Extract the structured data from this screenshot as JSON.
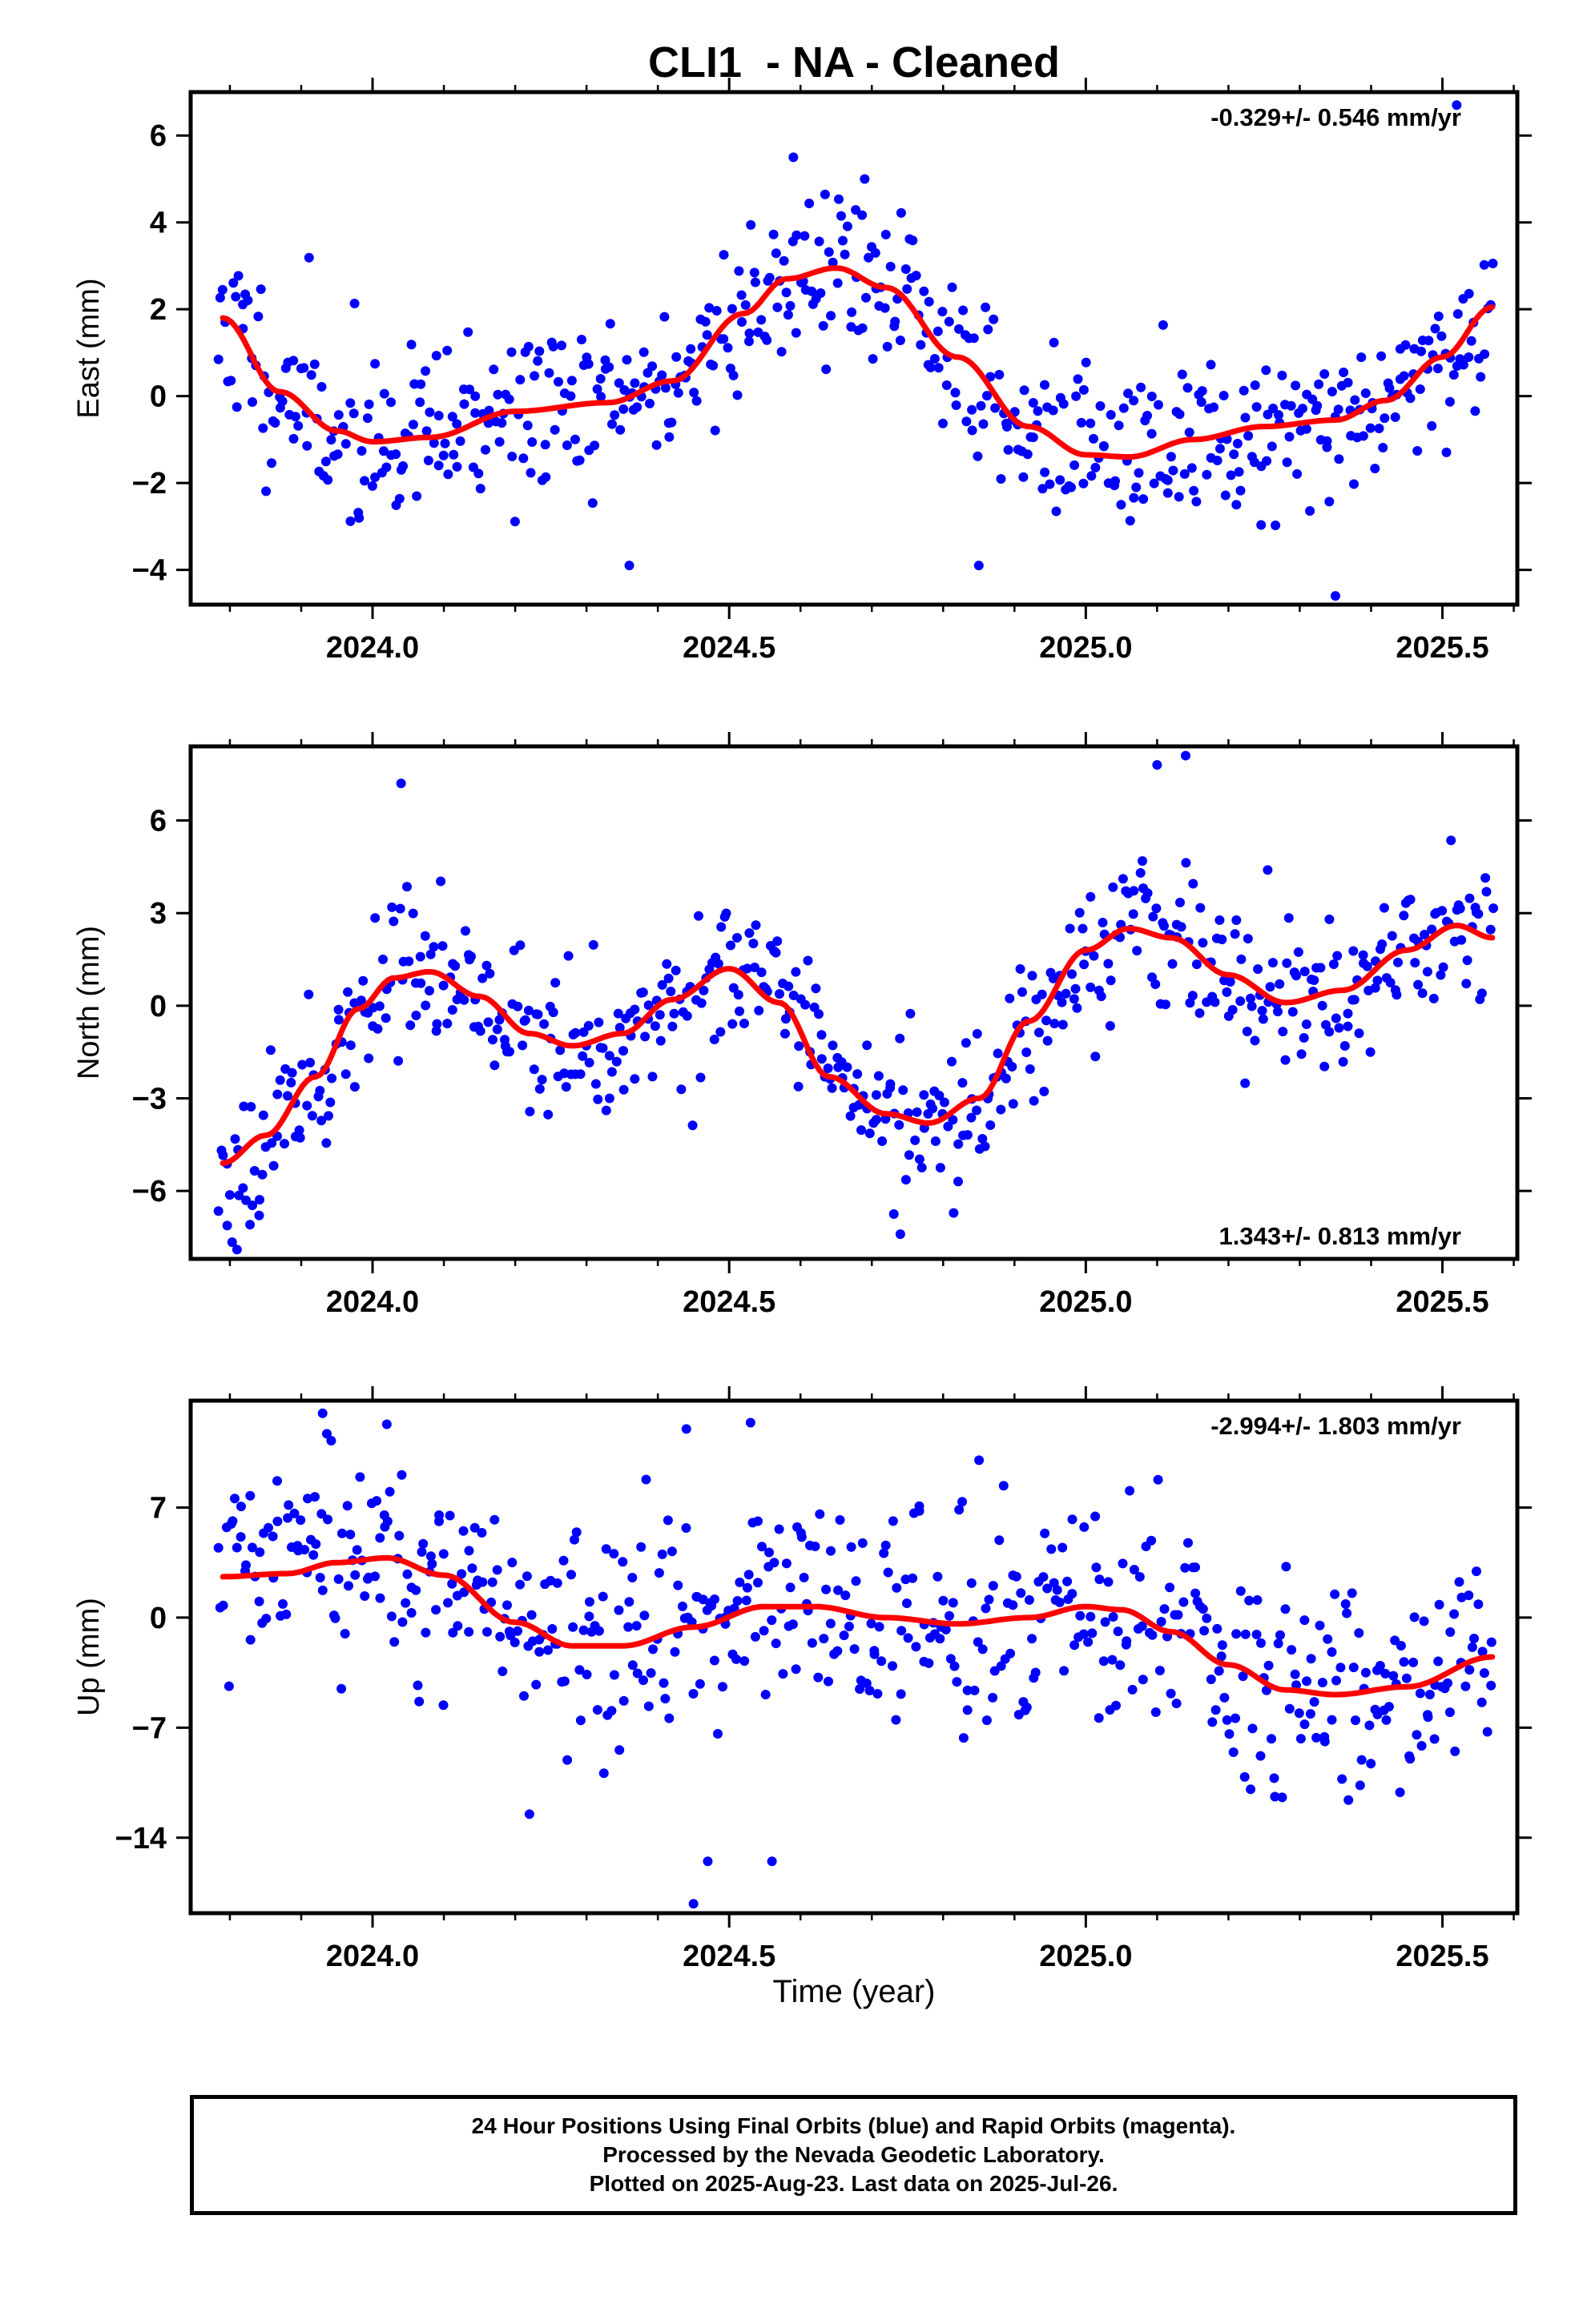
{
  "title": "CLI1  - NA - Cleaned",
  "xlabel": "Time (year)",
  "footer": {
    "line1": "24 Hour Positions Using Final Orbits (blue) and Rapid Orbits (magenta).",
    "line2": "Processed by the Nevada Geodetic Laboratory.",
    "line3": "Plotted on 2025-Aug-23. Last data on 2025-Jul-26."
  },
  "colors": {
    "points": "#0000ff",
    "fit": "#ff0000",
    "frame": "#000000"
  },
  "chart_data": [
    {
      "type": "scatter",
      "ylabel": "East (mm)",
      "rate": "-0.329+/- 0.546 mm/yr",
      "rate_position": "top-right",
      "xlim": [
        2023.745,
        2025.605
      ],
      "ylim": [
        -4.8,
        7.0
      ],
      "xticks": [
        2024.0,
        2024.5,
        2025.0,
        2025.5
      ],
      "xtick_labels": [
        "2024.0",
        "2024.5",
        "2025.0",
        "2025.5"
      ],
      "yticks": [
        -4,
        -2,
        0,
        2,
        4,
        6
      ],
      "ytick_labels": [
        "−4",
        "−2",
        "0",
        "2",
        "4",
        "6"
      ],
      "seed": 11,
      "noise": 1.0,
      "outliers": [
        {
          "x": 2024.36,
          "y": -3.9
        },
        {
          "x": 2024.85,
          "y": -3.9
        },
        {
          "x": 2025.35,
          "y": -4.6
        },
        {
          "x": 2024.59,
          "y": 5.5
        },
        {
          "x": 2025.52,
          "y": 6.7
        },
        {
          "x": 2024.69,
          "y": 5.0
        }
      ],
      "fit": {
        "x": [
          2023.79,
          2023.87,
          2023.95,
          2024.0,
          2024.08,
          2024.2,
          2024.33,
          2024.42,
          2024.52,
          2024.58,
          2024.65,
          2024.72,
          2024.82,
          2024.92,
          2025.0,
          2025.06,
          2025.15,
          2025.25,
          2025.35,
          2025.42,
          2025.5,
          2025.57
        ],
        "y": [
          1.8,
          0.1,
          -0.8,
          -1.05,
          -0.95,
          -0.35,
          -0.15,
          0.35,
          1.9,
          2.7,
          2.95,
          2.5,
          0.9,
          -0.7,
          -1.35,
          -1.4,
          -1.0,
          -0.7,
          -0.55,
          -0.1,
          0.9,
          2.05
        ]
      }
    },
    {
      "type": "scatter",
      "ylabel": "North (mm)",
      "rate": "1.343+/- 0.813 mm/yr",
      "rate_position": "bottom-right",
      "xlim": [
        2023.745,
        2025.605
      ],
      "ylim": [
        -8.2,
        8.4
      ],
      "xticks": [
        2024.0,
        2024.5,
        2025.0,
        2025.5
      ],
      "xtick_labels": [
        "2024.0",
        "2024.5",
        "2025.0",
        "2025.5"
      ],
      "yticks": [
        -6,
        -3,
        0,
        3,
        6
      ],
      "ytick_labels": [
        "−6",
        "−3",
        "0",
        "3",
        "6"
      ],
      "seed": 23,
      "noise": 1.2,
      "outliers": [
        {
          "x": 2024.04,
          "y": 7.2
        },
        {
          "x": 2025.14,
          "y": 8.1
        },
        {
          "x": 2024.74,
          "y": -7.4
        },
        {
          "x": 2023.81,
          "y": -7.9
        },
        {
          "x": 2025.1,
          "y": 7.8
        }
      ],
      "fit": {
        "x": [
          2023.79,
          2023.85,
          2023.92,
          2023.98,
          2024.03,
          2024.08,
          2024.15,
          2024.22,
          2024.28,
          2024.35,
          2024.42,
          2024.5,
          2024.57,
          2024.64,
          2024.72,
          2024.78,
          2024.85,
          2024.92,
          2025.0,
          2025.06,
          2025.12,
          2025.2,
          2025.28,
          2025.36,
          2025.45,
          2025.52,
          2025.57
        ],
        "y": [
          -5.1,
          -4.2,
          -2.3,
          -0.1,
          0.9,
          1.1,
          0.3,
          -0.9,
          -1.3,
          -0.9,
          0.2,
          1.2,
          0.1,
          -2.3,
          -3.5,
          -3.8,
          -3.0,
          -0.5,
          1.8,
          2.5,
          2.2,
          1.0,
          0.1,
          0.5,
          1.8,
          2.6,
          2.2
        ]
      }
    },
    {
      "type": "scatter",
      "ylabel": "Up (mm)",
      "rate": "-2.994+/- 1.803 mm/yr",
      "rate_position": "top-right",
      "xlim": [
        2023.745,
        2025.605
      ],
      "ylim": [
        -18.8,
        13.8
      ],
      "xticks": [
        2024.0,
        2024.5,
        2025.0,
        2025.5
      ],
      "xtick_labels": [
        "2024.0",
        "2024.5",
        "2025.0",
        "2025.5"
      ],
      "yticks": [
        -14,
        -7,
        0,
        7
      ],
      "ytick_labels": [
        "−14",
        "−7",
        "0",
        "7"
      ],
      "seed": 37,
      "noise": 3.4,
      "outliers": [
        {
          "x": 2024.45,
          "y": -18.2
        },
        {
          "x": 2024.47,
          "y": -15.5
        },
        {
          "x": 2024.56,
          "y": -15.5
        },
        {
          "x": 2023.93,
          "y": 13.0
        },
        {
          "x": 2024.02,
          "y": 12.3
        },
        {
          "x": 2024.44,
          "y": 12.0
        },
        {
          "x": 2024.53,
          "y": 12.4
        },
        {
          "x": 2024.22,
          "y": -12.5
        }
      ],
      "fit": {
        "x": [
          2023.79,
          2023.88,
          2023.95,
          2024.02,
          2024.1,
          2024.2,
          2024.28,
          2024.35,
          2024.45,
          2024.55,
          2024.62,
          2024.72,
          2024.82,
          2024.92,
          2025.0,
          2025.05,
          2025.12,
          2025.2,
          2025.28,
          2025.35,
          2025.45,
          2025.57
        ],
        "y": [
          2.6,
          2.8,
          3.5,
          3.8,
          2.7,
          -0.3,
          -1.8,
          -1.8,
          -0.6,
          0.7,
          0.7,
          0.0,
          -0.4,
          0.0,
          0.7,
          0.5,
          -0.9,
          -3.0,
          -4.6,
          -4.9,
          -4.4,
          -2.5
        ]
      }
    }
  ]
}
